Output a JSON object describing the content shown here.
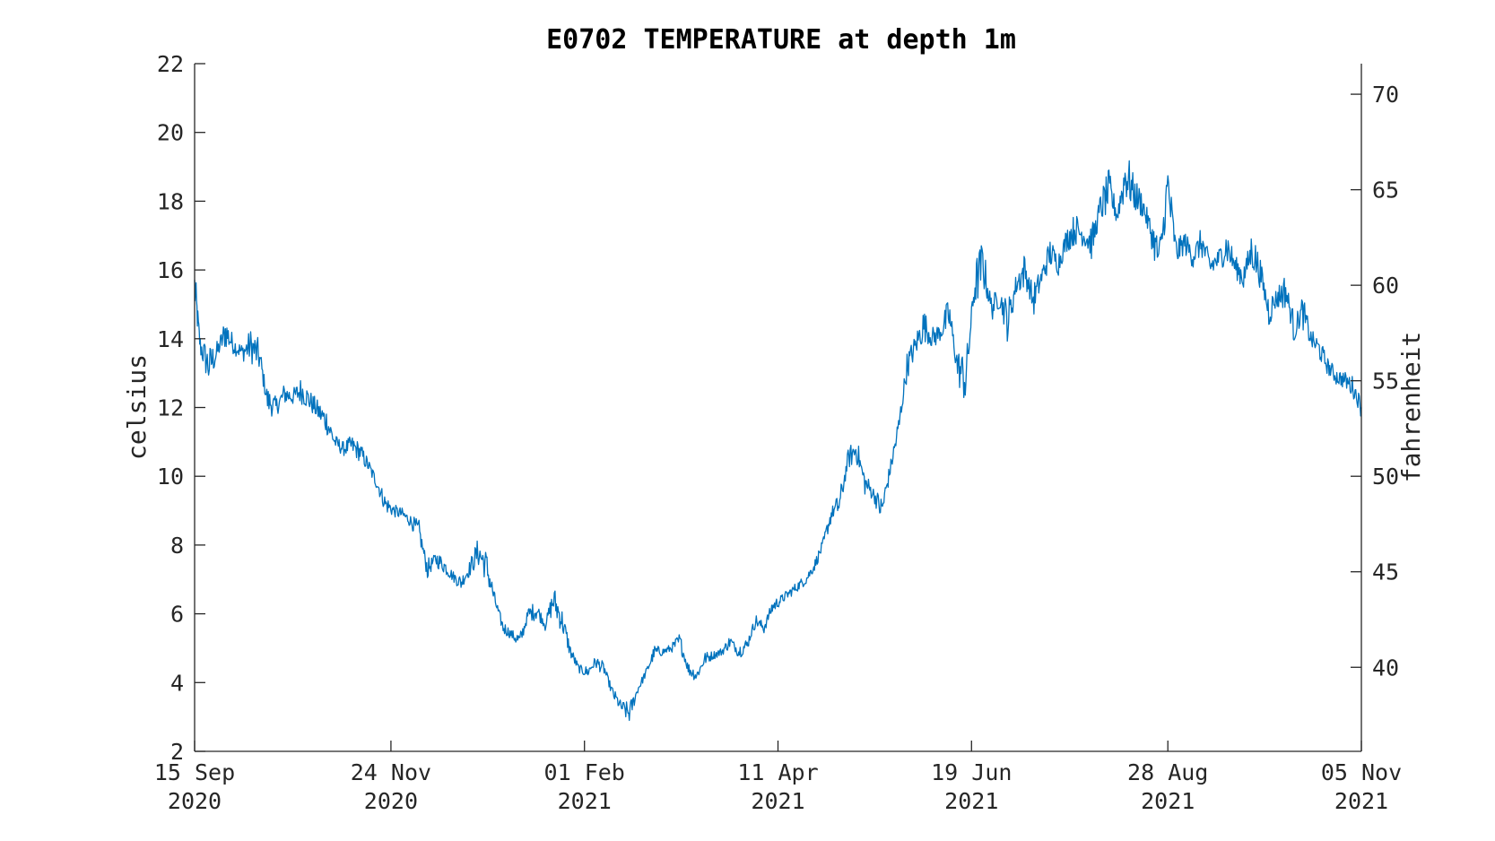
{
  "chart_data": {
    "type": "line",
    "title": "E0702 TEMPERATURE at depth 1m",
    "ylabel": "celsius",
    "y2label": "fahrenheit",
    "ylim": [
      2,
      22
    ],
    "y2lim": [
      35.6,
      71.6
    ],
    "xlim": [
      "2020-09-15",
      "2021-11-05"
    ],
    "yticks": [
      "2",
      "4",
      "6",
      "8",
      "10",
      "12",
      "14",
      "16",
      "18",
      "20",
      "22"
    ],
    "y2ticks": [
      "40",
      "45",
      "50",
      "55",
      "60",
      "65",
      "70"
    ],
    "xticks": [
      {
        "date": "2020-09-15",
        "day": "15 Sep",
        "year": "2020"
      },
      {
        "date": "2020-11-24",
        "day": "24 Nov",
        "year": "2020"
      },
      {
        "date": "2021-02-01",
        "day": "01 Feb",
        "year": "2021"
      },
      {
        "date": "2021-04-11",
        "day": "11 Apr",
        "year": "2021"
      },
      {
        "date": "2021-06-19",
        "day": "19 Jun",
        "year": "2021"
      },
      {
        "date": "2021-08-28",
        "day": "28 Aug",
        "year": "2021"
      },
      {
        "date": "2021-11-05",
        "day": "05 Nov",
        "year": "2021"
      }
    ],
    "grid": false,
    "series": [
      {
        "color": "#0072BD",
        "x": [
          "2020-09-15",
          "2020-09-17",
          "2020-09-20",
          "2020-09-23",
          "2020-09-26",
          "2020-09-29",
          "2020-10-02",
          "2020-10-05",
          "2020-10-08",
          "2020-10-11",
          "2020-10-14",
          "2020-10-17",
          "2020-10-20",
          "2020-10-23",
          "2020-10-26",
          "2020-10-29",
          "2020-11-01",
          "2020-11-04",
          "2020-11-07",
          "2020-11-10",
          "2020-11-13",
          "2020-11-16",
          "2020-11-19",
          "2020-11-22",
          "2020-11-25",
          "2020-11-28",
          "2020-12-01",
          "2020-12-04",
          "2020-12-07",
          "2020-12-10",
          "2020-12-13",
          "2020-12-16",
          "2020-12-19",
          "2020-12-22",
          "2020-12-25",
          "2020-12-28",
          "2020-12-31",
          "2021-01-03",
          "2021-01-06",
          "2021-01-09",
          "2021-01-12",
          "2021-01-15",
          "2021-01-18",
          "2021-01-21",
          "2021-01-24",
          "2021-01-27",
          "2021-01-30",
          "2021-02-02",
          "2021-02-05",
          "2021-02-08",
          "2021-02-11",
          "2021-02-14",
          "2021-02-17",
          "2021-02-20",
          "2021-02-23",
          "2021-02-26",
          "2021-03-01",
          "2021-03-04",
          "2021-03-07",
          "2021-03-10",
          "2021-03-13",
          "2021-03-16",
          "2021-03-19",
          "2021-03-22",
          "2021-03-25",
          "2021-03-28",
          "2021-03-31",
          "2021-04-03",
          "2021-04-06",
          "2021-04-09",
          "2021-04-12",
          "2021-04-15",
          "2021-04-18",
          "2021-04-21",
          "2021-04-24",
          "2021-04-27",
          "2021-04-30",
          "2021-05-03",
          "2021-05-06",
          "2021-05-09",
          "2021-05-12",
          "2021-05-15",
          "2021-05-18",
          "2021-05-21",
          "2021-05-24",
          "2021-05-27",
          "2021-05-30",
          "2021-06-02",
          "2021-06-05",
          "2021-06-08",
          "2021-06-11",
          "2021-06-14",
          "2021-06-17",
          "2021-06-20",
          "2021-06-23",
          "2021-06-26",
          "2021-06-29",
          "2021-07-02",
          "2021-07-05",
          "2021-07-08",
          "2021-07-11",
          "2021-07-14",
          "2021-07-17",
          "2021-07-20",
          "2021-07-23",
          "2021-07-26",
          "2021-07-29",
          "2021-08-01",
          "2021-08-04",
          "2021-08-07",
          "2021-08-10",
          "2021-08-13",
          "2021-08-16",
          "2021-08-19",
          "2021-08-22",
          "2021-08-25",
          "2021-08-28",
          "2021-08-31",
          "2021-09-03",
          "2021-09-06",
          "2021-09-09",
          "2021-09-12",
          "2021-09-15",
          "2021-09-18",
          "2021-09-21",
          "2021-09-24",
          "2021-09-27",
          "2021-09-30",
          "2021-10-03",
          "2021-10-06",
          "2021-10-09",
          "2021-10-12",
          "2021-10-15",
          "2021-10-18",
          "2021-10-21",
          "2021-10-24",
          "2021-10-27",
          "2021-10-30",
          "2021-11-02",
          "2021-11-05"
        ],
        "y": [
          15.5,
          13.8,
          13.2,
          13.6,
          14.2,
          13.8,
          13.6,
          13.8,
          13.5,
          12.2,
          12.0,
          12.4,
          12.3,
          12.5,
          12.2,
          11.9,
          11.6,
          11.0,
          10.8,
          10.9,
          10.7,
          10.3,
          9.8,
          9.2,
          9.0,
          8.9,
          8.7,
          8.4,
          7.3,
          7.6,
          7.4,
          7.1,
          6.9,
          7.3,
          7.8,
          7.4,
          6.4,
          5.6,
          5.4,
          5.2,
          6.0,
          6.1,
          5.7,
          6.4,
          5.8,
          4.9,
          4.4,
          4.3,
          4.6,
          4.4,
          3.7,
          3.3,
          3.1,
          3.8,
          4.3,
          4.9,
          4.9,
          5.0,
          5.2,
          4.4,
          4.2,
          4.7,
          4.8,
          4.9,
          5.2,
          4.9,
          5.1,
          5.8,
          5.6,
          6.2,
          6.4,
          6.6,
          6.8,
          7.0,
          7.4,
          8.0,
          8.9,
          9.2,
          10.5,
          10.8,
          9.8,
          9.5,
          9.0,
          10.2,
          11.4,
          13.2,
          13.8,
          14.4,
          14.0,
          14.2,
          14.7,
          13.2,
          12.8,
          15.5,
          16.2,
          14.9,
          15.2,
          14.5,
          15.6,
          16.0,
          15.1,
          15.8,
          16.5,
          16.2,
          16.9,
          17.2,
          17.0,
          16.8,
          17.8,
          18.3,
          17.6,
          18.8,
          18.2,
          17.9,
          17.1,
          16.3,
          18.4,
          16.5,
          16.8,
          16.4,
          16.8,
          16.1,
          16.3,
          16.7,
          16.1,
          15.8,
          16.6,
          15.9,
          14.8,
          15.2,
          15.4,
          14.3,
          14.8,
          14.0,
          13.7,
          13.2,
          12.9,
          12.8,
          12.6,
          12.0
        ],
        "y_mean": [
          15.0,
          13.9,
          13.6,
          13.7,
          13.9,
          13.8,
          13.6,
          13.5,
          13.2,
          12.4,
          12.1,
          12.3,
          12.3,
          12.3,
          12.1,
          11.8,
          11.4,
          11.0,
          10.8,
          10.8,
          10.6,
          10.3,
          9.8,
          9.3,
          9.0,
          8.9,
          8.7,
          8.2,
          7.5,
          7.5,
          7.3,
          7.1,
          7.0,
          7.2,
          7.5,
          7.0,
          6.3,
          5.7,
          5.4,
          5.4,
          5.9,
          5.9,
          5.8,
          6.0,
          5.5,
          4.8,
          4.4,
          4.4,
          4.5,
          4.3,
          3.8,
          3.4,
          3.4,
          3.8,
          4.3,
          4.8,
          4.9,
          5.0,
          5.0,
          4.5,
          4.3,
          4.6,
          4.8,
          4.9,
          5.1,
          5.0,
          5.2,
          5.7,
          5.7,
          6.1,
          6.4,
          6.6,
          6.8,
          7.0,
          7.4,
          8.0,
          8.8,
          9.5,
          10.4,
          10.5,
          10.0,
          9.5,
          9.3,
          10.2,
          11.6,
          13.0,
          13.7,
          14.1,
          14.1,
          14.2,
          14.3,
          13.5,
          13.5,
          15.0,
          15.6,
          15.1,
          15.1,
          15.0,
          15.5,
          15.7,
          15.4,
          15.8,
          16.3,
          16.3,
          16.8,
          17.0,
          17.0,
          17.1,
          17.6,
          17.9,
          17.8,
          18.2,
          18.0,
          17.8,
          17.2,
          16.8,
          17.6,
          16.7,
          16.7,
          16.5,
          16.6,
          16.3,
          16.3,
          16.4,
          16.1,
          16.0,
          16.2,
          15.7,
          15.1,
          15.1,
          15.1,
          14.6,
          14.5,
          14.0,
          13.6,
          13.2,
          12.9,
          12.8,
          12.5,
          12.1
        ]
      }
    ]
  }
}
